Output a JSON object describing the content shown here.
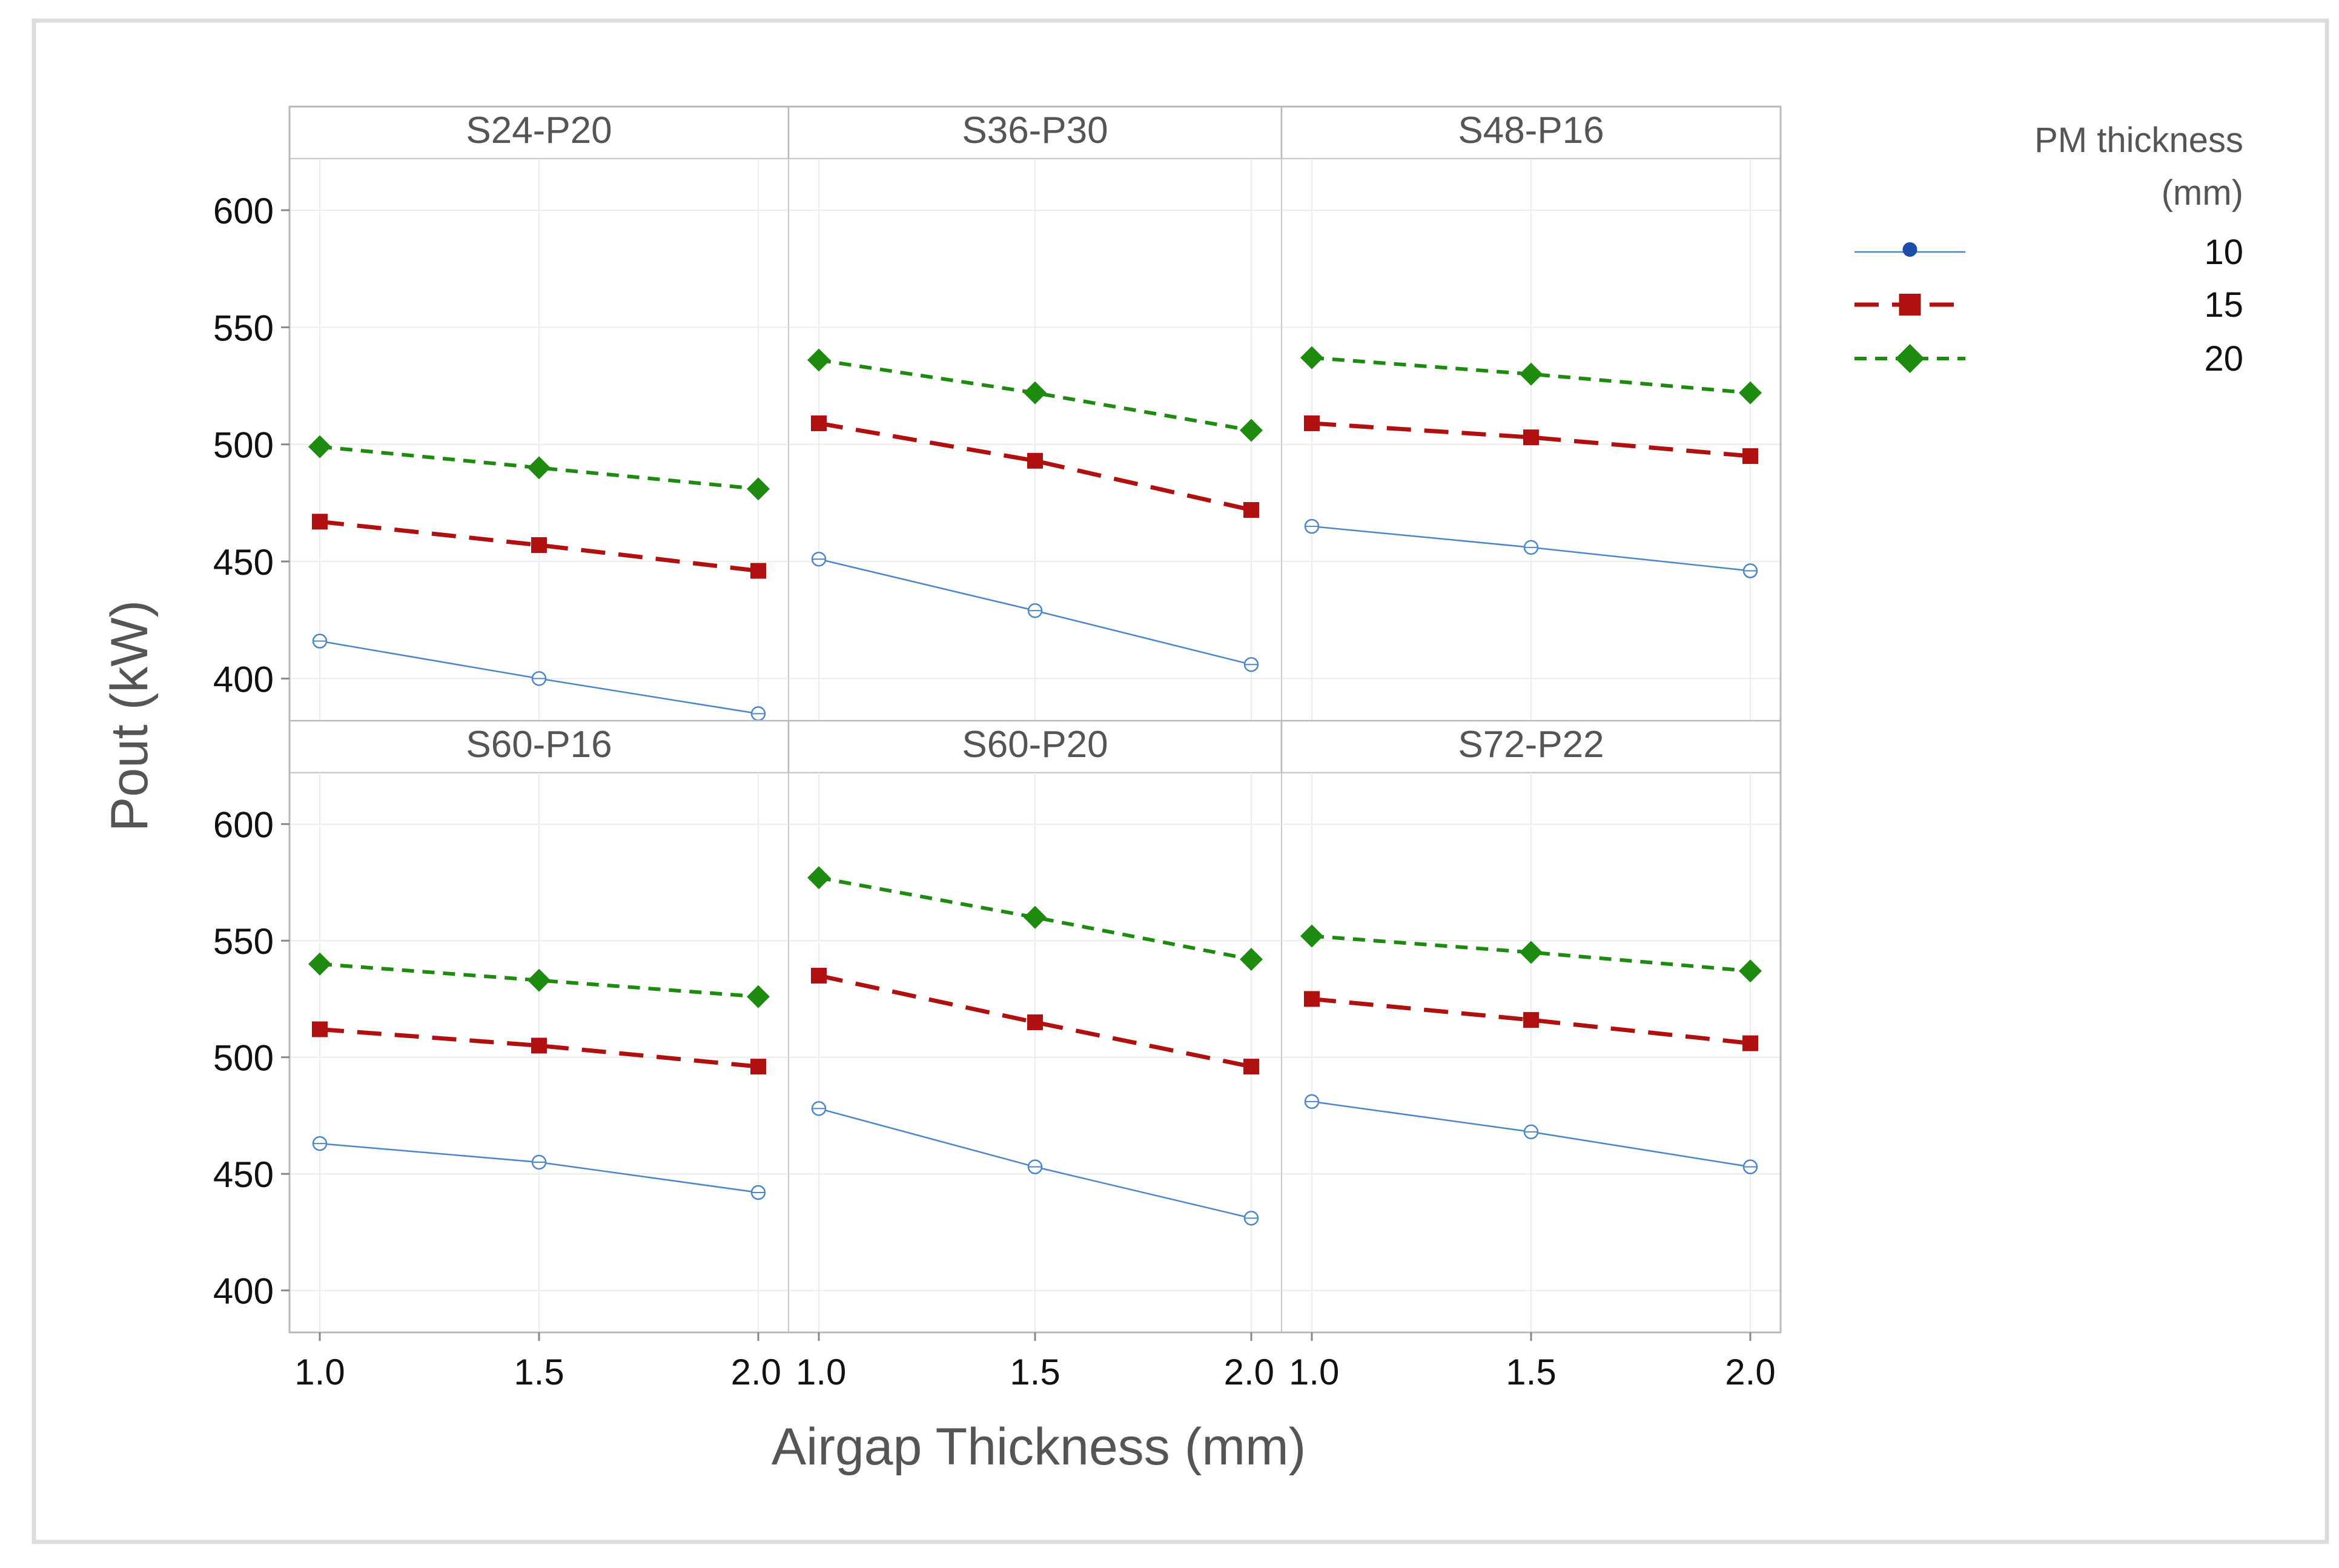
{
  "chart_data": {
    "type": "line",
    "layout": "facet-grid-2x3",
    "xlabel": "Airgap Thickness (mm)",
    "ylabel": "Pout (kW)",
    "x": [
      1.0,
      1.5,
      2.0
    ],
    "x_tick_labels": [
      "1.0",
      "1.5",
      "2.0"
    ],
    "ylim": [
      382,
      622
    ],
    "y_ticks": [
      400,
      450,
      500,
      550,
      600
    ],
    "legend": {
      "title_line1": "PM thickness",
      "title_line2": "(mm)",
      "entries": [
        {
          "label": "10",
          "color": "#4a86c8",
          "marker": "circle",
          "dash": "solid"
        },
        {
          "label": "15",
          "color": "#b01010",
          "marker": "square",
          "dash": "long-dash"
        },
        {
          "label": "20",
          "color": "#1e8a10",
          "marker": "diamond",
          "dash": "short-dash"
        }
      ],
      "placement": "right"
    },
    "panels": [
      {
        "title": "S24-P20",
        "series": [
          {
            "name": "10",
            "values": [
              416,
              400,
              385
            ]
          },
          {
            "name": "15",
            "values": [
              467,
              457,
              446
            ]
          },
          {
            "name": "20",
            "values": [
              499,
              490,
              481
            ]
          }
        ]
      },
      {
        "title": "S36-P30",
        "series": [
          {
            "name": "10",
            "values": [
              451,
              429,
              406
            ]
          },
          {
            "name": "15",
            "values": [
              509,
              493,
              472
            ]
          },
          {
            "name": "20",
            "values": [
              536,
              522,
              506
            ]
          }
        ]
      },
      {
        "title": "S48-P16",
        "series": [
          {
            "name": "10",
            "values": [
              465,
              456,
              446
            ]
          },
          {
            "name": "15",
            "values": [
              509,
              503,
              495
            ]
          },
          {
            "name": "20",
            "values": [
              537,
              530,
              522
            ]
          }
        ]
      },
      {
        "title": "S60-P16",
        "series": [
          {
            "name": "10",
            "values": [
              463,
              455,
              442
            ]
          },
          {
            "name": "15",
            "values": [
              512,
              505,
              496
            ]
          },
          {
            "name": "20",
            "values": [
              540,
              533,
              526
            ]
          }
        ]
      },
      {
        "title": "S60-P20",
        "series": [
          {
            "name": "10",
            "values": [
              478,
              453,
              431
            ]
          },
          {
            "name": "15",
            "values": [
              535,
              515,
              496
            ]
          },
          {
            "name": "20",
            "values": [
              577,
              560,
              542
            ]
          }
        ]
      },
      {
        "title": "S72-P22",
        "series": [
          {
            "name": "10",
            "values": [
              481,
              468,
              453
            ]
          },
          {
            "name": "15",
            "values": [
              525,
              516,
              506
            ]
          },
          {
            "name": "20",
            "values": [
              552,
              545,
              537
            ]
          }
        ]
      }
    ]
  }
}
